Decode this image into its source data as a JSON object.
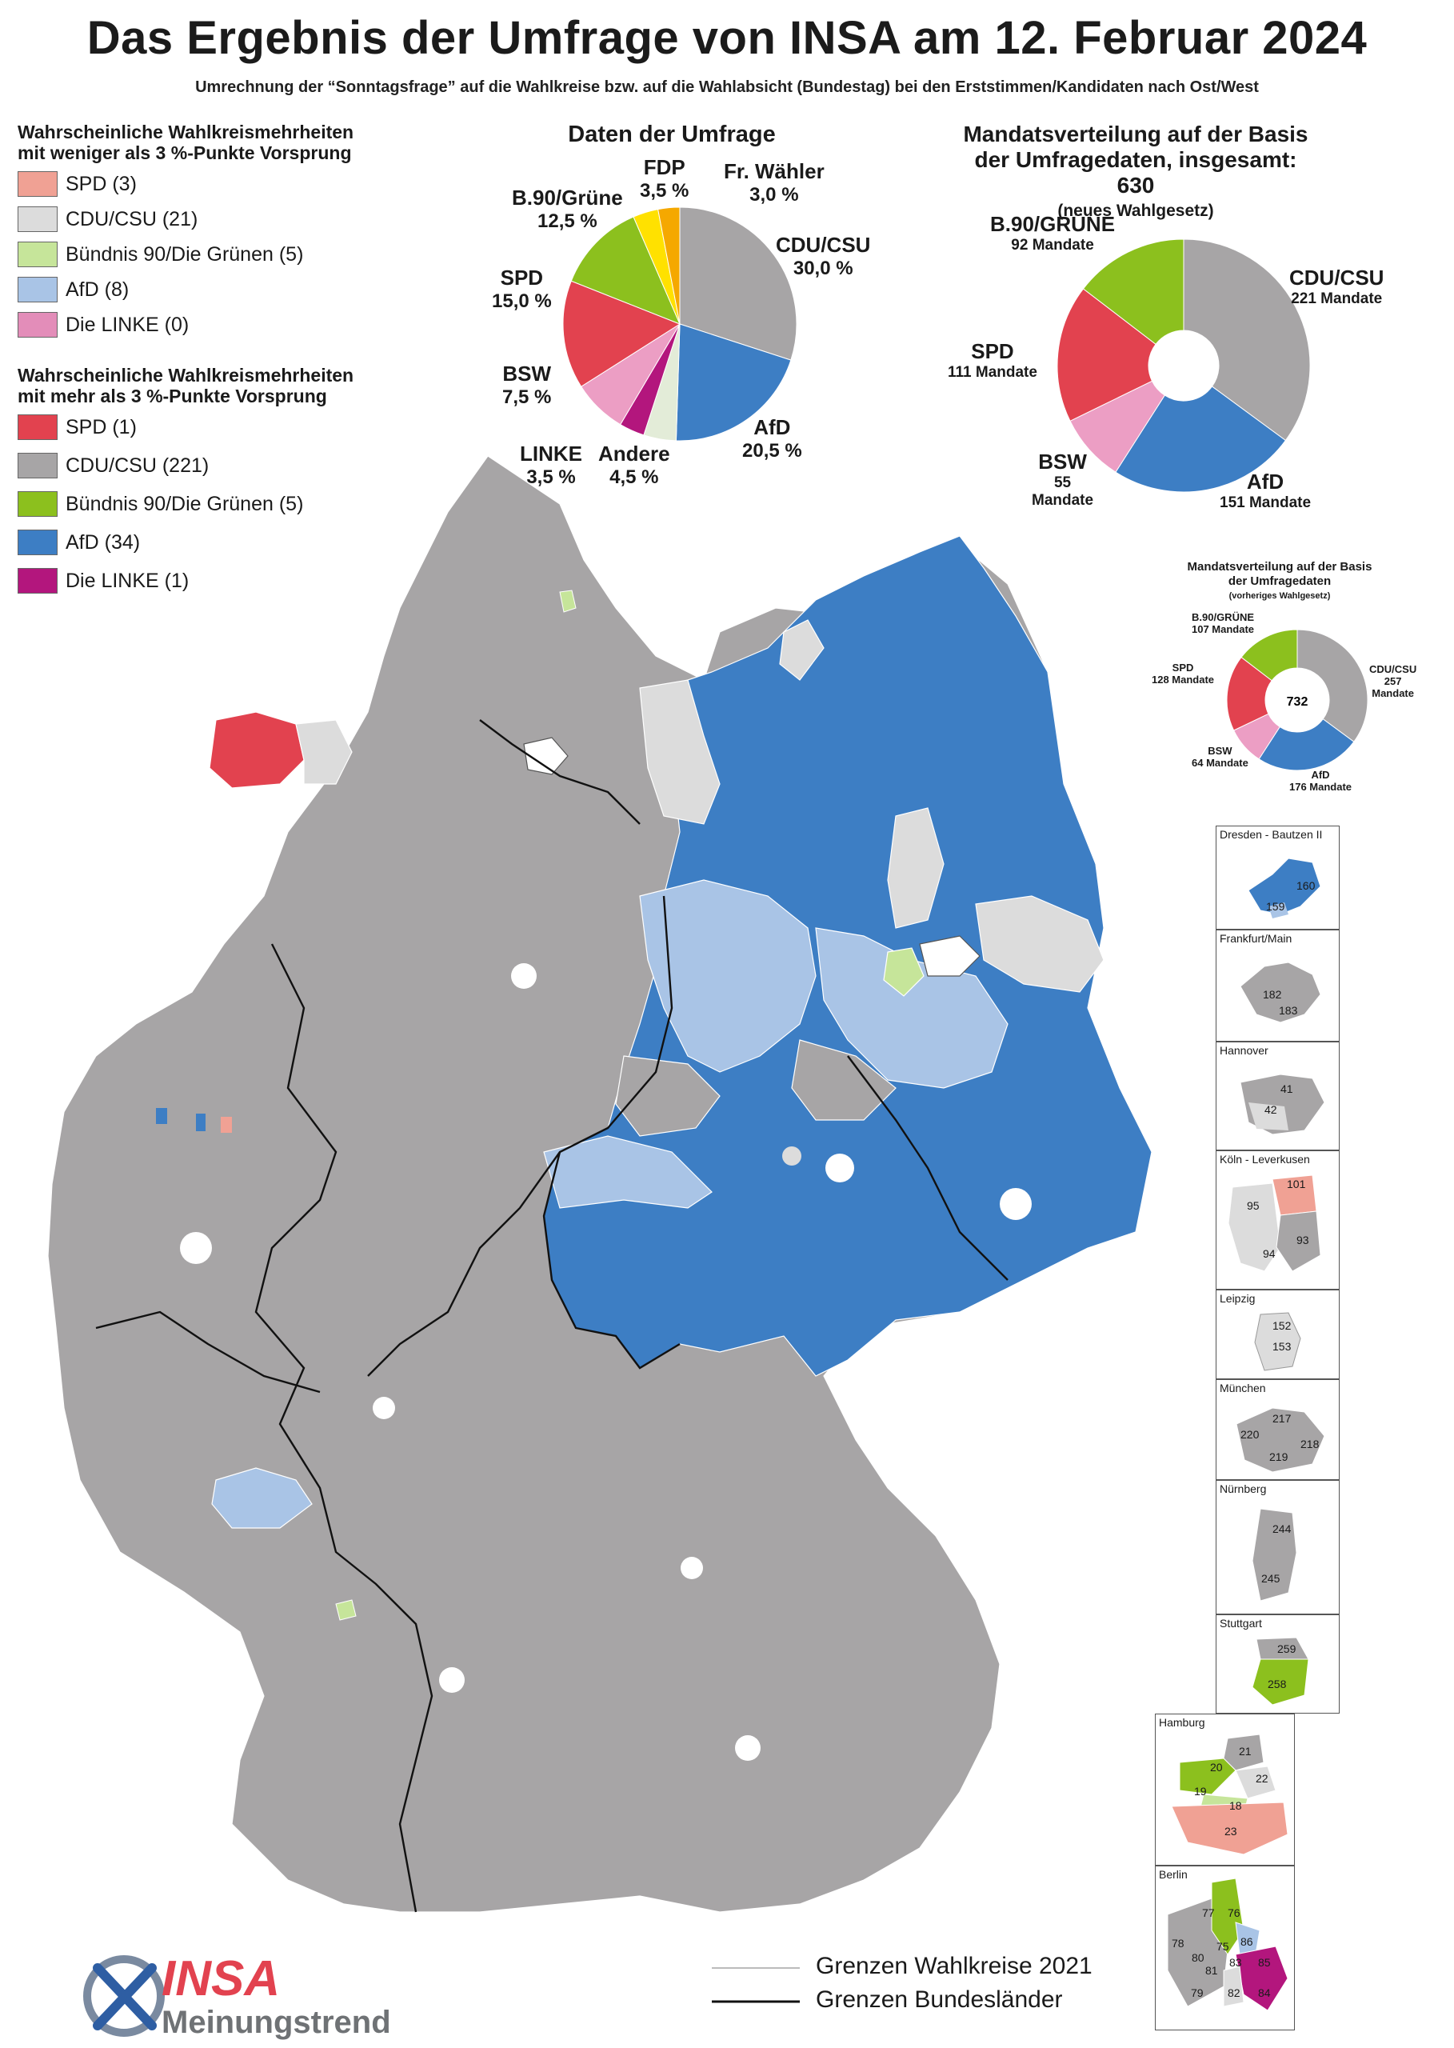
{
  "header": {
    "title": "Das Ergebnis der Umfrage von INSA am 12. Februar 2024",
    "subtitle": "Umrechnung der “Sonntagsfrage” auf die Wahlkreise bzw. auf die Wahlabsicht (Bundestag) bei den Erststimmen/Kandidaten nach Ost/West"
  },
  "legend_low": {
    "title_line1": "Wahrscheinliche Wahlkreismehrheiten",
    "title_line2": "mit weniger als 3 %-Punkte Vorsprung",
    "items": [
      {
        "label": "SPD (3)",
        "color": "#f0a194"
      },
      {
        "label": "CDU/CSU (21)",
        "color": "#dcdcdc"
      },
      {
        "label": "Bündnis 90/Die Grünen (5)",
        "color": "#c6e59a"
      },
      {
        "label": "AfD (8)",
        "color": "#a9c4e6"
      },
      {
        "label": "Die LINKE (0)",
        "color": "#e38db9"
      }
    ]
  },
  "legend_high": {
    "title_line1": "Wahrscheinliche Wahlkreismehrheiten",
    "title_line2": "mit mehr als 3 %-Punkte Vorsprung",
    "items": [
      {
        "label": "SPD (1)",
        "color": "#e2424f"
      },
      {
        "label": "CDU/CSU (221)",
        "color": "#a7a5a6"
      },
      {
        "label": "Bündnis 90/Die Grünen (5)",
        "color": "#8cc01e"
      },
      {
        "label": "AfD (34)",
        "color": "#3d7ec4"
      },
      {
        "label": "Die LINKE (1)",
        "color": "#b3167d"
      }
    ]
  },
  "survey": {
    "title": "Daten der Umfrage",
    "labels": {
      "fdp": {
        "name": "FDP",
        "value": "3,5 %"
      },
      "fw": {
        "name": "Fr. Wähler",
        "value": "3,0 %"
      },
      "gruene": {
        "name": "B.90/Grüne",
        "value": "12,5 %"
      },
      "cdu": {
        "name": "CDU/CSU",
        "value": "30,0 %"
      },
      "spd": {
        "name": "SPD",
        "value": "15,0 %"
      },
      "bsw": {
        "name": "BSW",
        "value": "7,5 %"
      },
      "afd": {
        "name": "AfD",
        "value": "20,5 %"
      },
      "linke": {
        "name": "LINKE",
        "value": "3,5 %"
      },
      "andere": {
        "name": "Andere",
        "value": "4,5 %"
      }
    }
  },
  "seats_new": {
    "title_line1": "Mandatsverteilung auf der Basis",
    "title_line2": "der Umfragedaten, insgesamt: 630",
    "title_line3": "(neues Wahlgesetz)",
    "labels": {
      "gruene": {
        "name": "B.90/GRÜNE",
        "value": "92 Mandate"
      },
      "cdu": {
        "name": "CDU/CSU",
        "value": "221 Mandate"
      },
      "spd": {
        "name": "SPD",
        "value": "111 Mandate"
      },
      "bsw": {
        "name": "BSW",
        "value_line1": "55",
        "value_line2": "Mandate"
      },
      "afd": {
        "name": "AfD",
        "value": "151 Mandate"
      }
    }
  },
  "seats_old": {
    "title_line1": "Mandatsverteilung auf der Basis",
    "title_line2": "der Umfragedaten",
    "title_line3": "(vorheriges Wahlgesetz)",
    "total": "732",
    "labels": {
      "gruene": {
        "name": "B.90/GRÜNE",
        "value": "107 Mandate"
      },
      "spd": {
        "name": "SPD",
        "value": "128 Mandate"
      },
      "cdu": {
        "name": "CDU/CSU",
        "value": "257",
        "value2": "Mandate"
      },
      "bsw": {
        "name": "BSW",
        "value": "64 Mandate"
      },
      "afd": {
        "name": "AfD",
        "value": "176 Mandate"
      }
    }
  },
  "chart_data": [
    {
      "type": "pie",
      "title": "Daten der Umfrage",
      "categories": [
        "CDU/CSU",
        "AfD",
        "Andere",
        "LINKE",
        "BSW",
        "SPD",
        "B.90/Grüne",
        "FDP",
        "Fr. Wähler"
      ],
      "values": [
        30.0,
        20.5,
        4.5,
        3.5,
        7.5,
        15.0,
        12.5,
        3.5,
        3.0
      ],
      "unit": "%",
      "colors": [
        "#a7a5a6",
        "#3d7ec4",
        "#e3ecd8",
        "#b3167d",
        "#ec9ec4",
        "#e2424f",
        "#8cc01e",
        "#ffe100",
        "#f5a800"
      ]
    },
    {
      "type": "pie",
      "title": "Mandatsverteilung auf der Basis der Umfragedaten, insgesamt: 630 (neues Wahlgesetz)",
      "categories": [
        "CDU/CSU",
        "AfD",
        "BSW",
        "SPD",
        "B.90/GRÜNE"
      ],
      "values": [
        221,
        151,
        55,
        111,
        92
      ],
      "colors": [
        "#a7a5a6",
        "#3d7ec4",
        "#ec9ec4",
        "#e2424f",
        "#8cc01e"
      ]
    },
    {
      "type": "pie",
      "title": "Mandatsverteilung auf der Basis der Umfragedaten (vorheriges Wahlgesetz)",
      "categories": [
        "CDU/CSU",
        "AfD",
        "BSW",
        "SPD",
        "B.90/GRÜNE"
      ],
      "values": [
        257,
        176,
        64,
        128,
        107
      ],
      "colors": [
        "#a7a5a6",
        "#3d7ec4",
        "#ec9ec4",
        "#e2424f",
        "#8cc01e"
      ]
    }
  ],
  "insets": [
    {
      "name": "Dresden - Bautzen II",
      "numbers": [
        "160",
        "159"
      ]
    },
    {
      "name": "Frankfurt/Main",
      "numbers": [
        "182",
        "183"
      ]
    },
    {
      "name": "Hannover",
      "numbers": [
        "41",
        "42"
      ]
    },
    {
      "name": "Köln -  Leverkusen",
      "numbers": [
        "101",
        "95",
        "93",
        "94"
      ]
    },
    {
      "name": "Leipzig",
      "numbers": [
        "152",
        "153"
      ]
    },
    {
      "name": "München",
      "numbers": [
        "217",
        "220",
        "218",
        "219"
      ]
    },
    {
      "name": "Nürnberg",
      "numbers": [
        "244",
        "245"
      ]
    },
    {
      "name": "Stuttgart",
      "numbers": [
        "259",
        "258"
      ]
    },
    {
      "name": "Hamburg",
      "numbers": [
        "21",
        "20",
        "22",
        "19",
        "18",
        "23"
      ]
    },
    {
      "name": "Berlin",
      "numbers": [
        "77",
        "76",
        "78",
        "80",
        "75",
        "86",
        "81",
        "83",
        "85",
        "79",
        "82",
        "84"
      ]
    }
  ],
  "map_legend": {
    "thin": "Grenzen Wahlkreise 2021",
    "thick": "Grenzen Bundesländer"
  },
  "logo": {
    "brand": "INSA",
    "subtitle": "Meinungstrend"
  }
}
